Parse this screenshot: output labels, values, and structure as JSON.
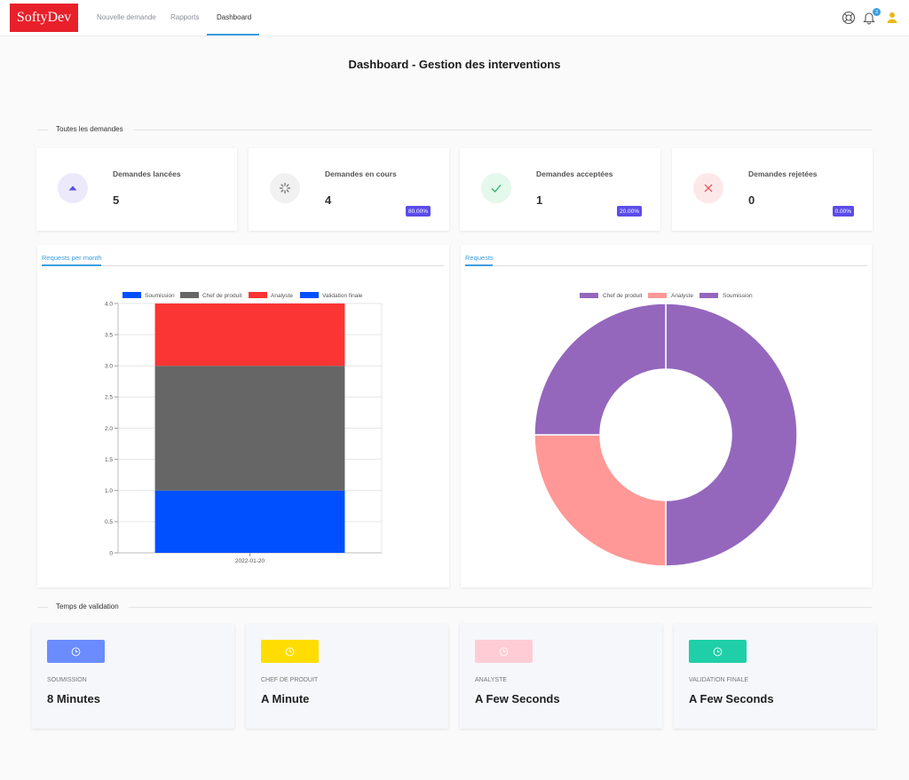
{
  "header": {
    "logo": "SoftyDev",
    "nav": [
      {
        "label": "Nouvelle demande"
      },
      {
        "label": "Rapports"
      },
      {
        "label": "Dashboard"
      }
    ],
    "notification_count": "3"
  },
  "page_title": "Dashboard - Gestion des interventions",
  "sections": {
    "requests": "Toutes les demandes",
    "validation": "Temps de validation"
  },
  "stats": [
    {
      "label": "Demandes lancées",
      "value": "5",
      "badge": "",
      "color": "#5a4ce8",
      "bg": "#ece9fb"
    },
    {
      "label": "Demandes en cours",
      "value": "4",
      "badge": "80.00%",
      "color": "#666666",
      "bg": "#f1f1f1"
    },
    {
      "label": "Demandes acceptées",
      "value": "1",
      "badge": "20.00%",
      "color": "#2fb36a",
      "bg": "#e4f8ec"
    },
    {
      "label": "Demandes rejetées",
      "value": "0",
      "badge": "0.00%",
      "color": "#e8474f",
      "bg": "#fde8e9"
    }
  ],
  "charts": {
    "bar_tab": "Requests per month",
    "donut_tab": "Requests"
  },
  "chart_data": [
    {
      "type": "bar",
      "stacked": true,
      "title": "",
      "categories": [
        "2022-01-20"
      ],
      "series": [
        {
          "name": "Soumission",
          "values": [
            1
          ],
          "color": "#0050ff"
        },
        {
          "name": "Chef de produit",
          "values": [
            2
          ],
          "color": "#666666"
        },
        {
          "name": "Analyste",
          "values": [
            1
          ],
          "color": "#fb3434"
        },
        {
          "name": "Validation finale",
          "values": [
            0
          ],
          "color": "#0050ff"
        }
      ],
      "yticks": [
        "0",
        "0.5",
        "1.0",
        "1.5",
        "2.0",
        "2.5",
        "3.0",
        "3.5",
        "4.0"
      ],
      "ylim": [
        0,
        4
      ],
      "legend": "top"
    },
    {
      "type": "pie",
      "donut": true,
      "title": "",
      "series": [
        {
          "name": "Chef de produit",
          "value": 2,
          "color": "#9467bd"
        },
        {
          "name": "Analyste",
          "value": 1,
          "color": "#ff9896"
        },
        {
          "name": "Soumission",
          "value": 1,
          "color": "#9467bd"
        }
      ],
      "legend": "top"
    }
  ],
  "validation": [
    {
      "label": "SOUMISSION",
      "value": "8 Minutes",
      "color": "#6b8cff"
    },
    {
      "label": "CHEF DE PRODUIT",
      "value": "A Minute",
      "color": "#ffdd00"
    },
    {
      "label": "ANALYSTE",
      "value": "A Few Seconds",
      "color": "#ffccd5"
    },
    {
      "label": "VALIDATION FINALE",
      "value": "A Few Seconds",
      "color": "#1fcfa8"
    }
  ]
}
